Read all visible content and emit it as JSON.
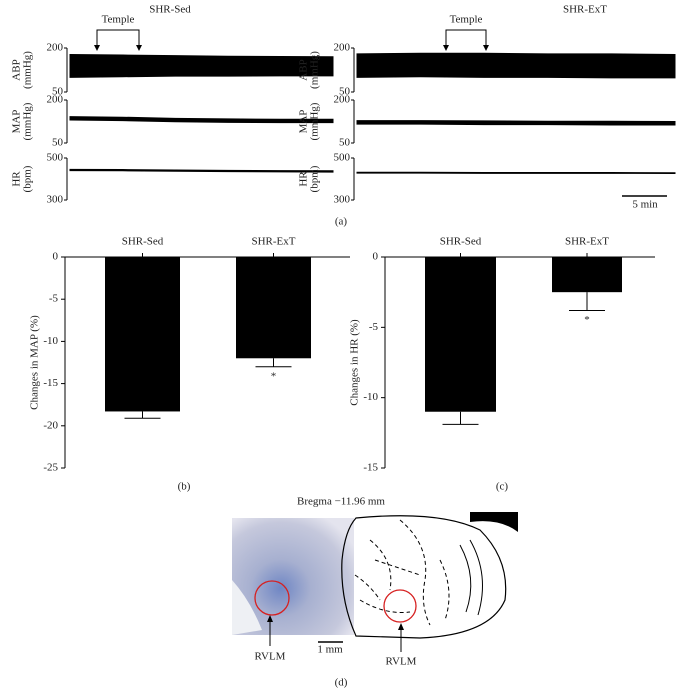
{
  "labels": {
    "a": "(a)",
    "d": "(d)"
  },
  "chart_data": [
    {
      "type": "band",
      "title": "SHR-Sed",
      "annotation": "Temple",
      "subplots": [
        {
          "ylabel": [
            "ABP",
            "(mmHg)"
          ],
          "ylim": [
            50,
            200
          ],
          "yticks": [
            50,
            200
          ],
          "upper": [
            178,
            176,
            174,
            172,
            171,
            170
          ],
          "lower": [
            100,
            102,
            104,
            104,
            105,
            105
          ]
        },
        {
          "ylabel": [
            "MAP",
            "(mmHg)"
          ],
          "ylim": [
            50,
            200
          ],
          "yticks": [
            50,
            200
          ],
          "upper": [
            142,
            140,
            136,
            134,
            133,
            133
          ],
          "lower": [
            130,
            128,
            124,
            122,
            121,
            121
          ]
        },
        {
          "ylabel": [
            "HR",
            "(bpm)"
          ],
          "ylim": [
            300,
            500
          ],
          "yticks": [
            300,
            500
          ],
          "upper": [
            446,
            445,
            443,
            441,
            440,
            439
          ],
          "lower": [
            440,
            439,
            437,
            435,
            434,
            433
          ]
        }
      ]
    },
    {
      "type": "band",
      "title": "SHR-ExT",
      "annotation": "Temple",
      "scale_bar": "5 min",
      "subplots": [
        {
          "ylabel": [
            "ABP",
            "(mmHg)"
          ],
          "ylim": [
            50,
            200
          ],
          "yticks": [
            50,
            200
          ],
          "upper": [
            180,
            182,
            182,
            180,
            180,
            178
          ],
          "lower": [
            100,
            102,
            100,
            100,
            98,
            98
          ]
        },
        {
          "ylabel": [
            "MAP",
            "(mmHg)"
          ],
          "ylim": [
            50,
            200
          ],
          "yticks": [
            50,
            200
          ],
          "upper": [
            128,
            128,
            127,
            126,
            126,
            125
          ],
          "lower": [
            116,
            116,
            114,
            114,
            113,
            113
          ]
        },
        {
          "ylabel": [
            "HR",
            "(bpm)"
          ],
          "ylim": [
            300,
            500
          ],
          "yticks": [
            300,
            500
          ],
          "upper": [
            432,
            432,
            431,
            431,
            431,
            430
          ],
          "lower": [
            428,
            428,
            427,
            427,
            427,
            426
          ]
        }
      ]
    },
    {
      "type": "bar",
      "panel_label": "(b)",
      "ylabel": "Changes in MAP (%)",
      "categories": [
        "SHR-Sed",
        "SHR-ExT"
      ],
      "values": [
        -18.3,
        -12.0
      ],
      "errors": [
        0.8,
        1.0
      ],
      "annotations": [
        null,
        "*"
      ],
      "color": "#000000",
      "ylim": [
        -25,
        0
      ],
      "yticks": [
        0,
        -5,
        -10,
        -15,
        -20,
        -25
      ]
    },
    {
      "type": "bar",
      "panel_label": "(c)",
      "ylabel": "Changes in HR (%)",
      "categories": [
        "SHR-Sed",
        "SHR-ExT"
      ],
      "values": [
        -11.0,
        -2.5
      ],
      "errors": [
        0.9,
        1.3
      ],
      "annotations": [
        null,
        "*"
      ],
      "color": "#000000",
      "ylim": [
        -15,
        0
      ],
      "yticks": [
        0,
        -5,
        -10,
        -15
      ]
    }
  ],
  "section_d": {
    "title": "Bregma −11.96 mm",
    "marker_left": "RVLM",
    "marker_right": "RVLM",
    "scale_bar": "1 mm"
  }
}
